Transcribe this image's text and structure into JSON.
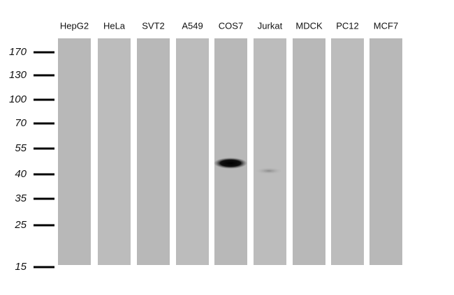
{
  "lanes": [
    "HepG2",
    "HeLa",
    "SVT2",
    "A549",
    "COS7",
    "Jurkat",
    "MDCK",
    "PC12",
    "MCF7"
  ],
  "markers": [
    170,
    130,
    100,
    70,
    55,
    40,
    35,
    25,
    15
  ]
}
